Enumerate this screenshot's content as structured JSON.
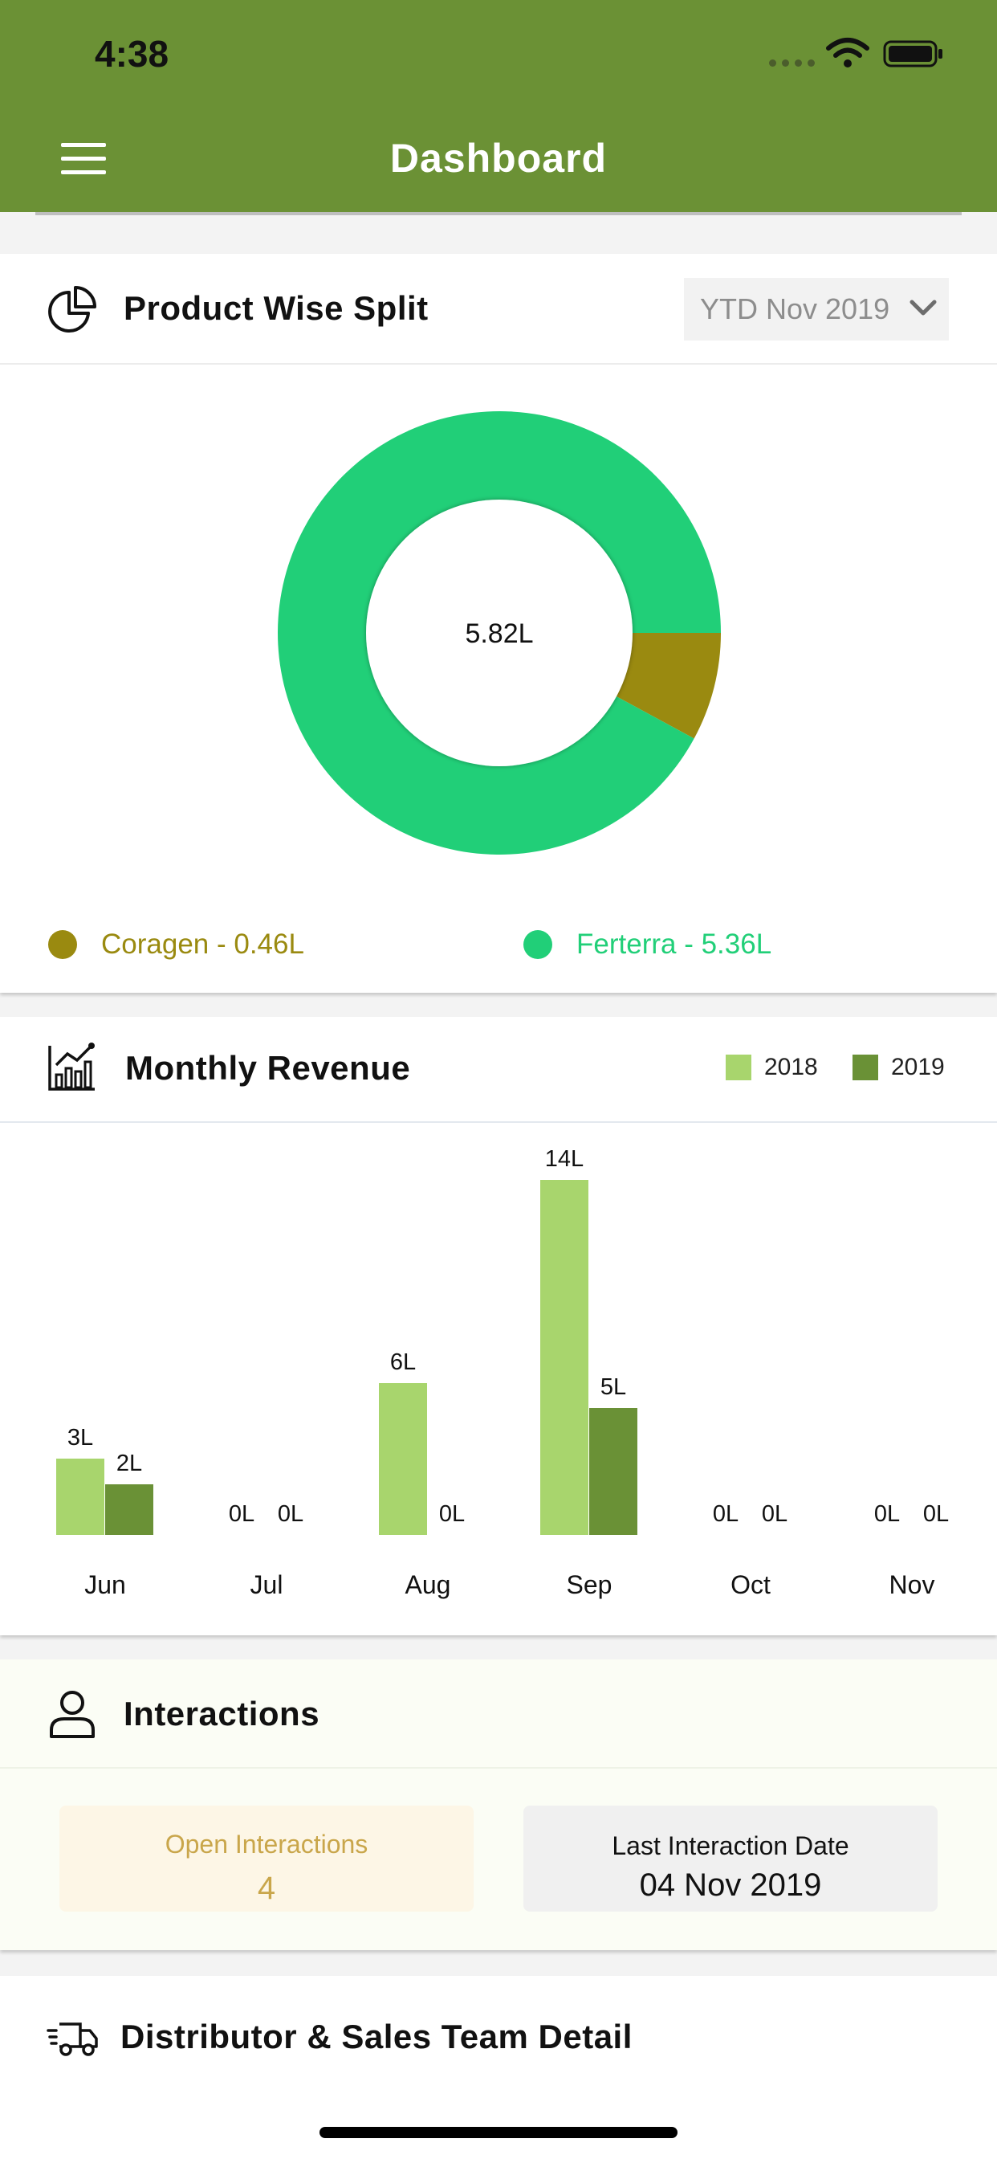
{
  "status_bar": {
    "time": "4:38"
  },
  "header": {
    "title": "Dashboard"
  },
  "product_split": {
    "title": "Product Wise Split",
    "period": "YTD Nov 2019",
    "total": "5.82L",
    "legend": [
      {
        "label": "Coragen - 0.46L",
        "color": "#9a8a10"
      },
      {
        "label": "Ferterra - 5.36L",
        "color": "#21cf78"
      }
    ]
  },
  "monthly_revenue": {
    "title": "Monthly Revenue",
    "legend": [
      {
        "label": "2018",
        "color": "#a8d56d"
      },
      {
        "label": "2019",
        "color": "#6a9136"
      }
    ]
  },
  "chart_data": [
    {
      "type": "pie",
      "categories": [
        "Coragen",
        "Ferterra"
      ],
      "values": [
        0.46,
        5.36
      ],
      "unit": "L",
      "colors": [
        "#9a8a10",
        "#21cf78"
      ],
      "center_label": "5.82L"
    },
    {
      "type": "bar",
      "categories": [
        "Jun",
        "Jul",
        "Aug",
        "Sep",
        "Oct",
        "Nov"
      ],
      "series": [
        {
          "name": "2018",
          "values": [
            3,
            0,
            6,
            14,
            0,
            0
          ],
          "labels": [
            "3L",
            "0L",
            "6L",
            "14L",
            "0L",
            "0L"
          ],
          "color": "#a8d56d"
        },
        {
          "name": "2019",
          "values": [
            2,
            0,
            0,
            5,
            0,
            0
          ],
          "labels": [
            "2L",
            "0L",
            "0L",
            "5L",
            "0L",
            "0L"
          ],
          "color": "#6a9136"
        }
      ],
      "ylim": [
        0,
        14
      ],
      "legend_position": "top-right"
    }
  ],
  "interactions": {
    "title": "Interactions",
    "open_label": "Open Interactions",
    "open_value": "4",
    "last_label": "Last Interaction Date",
    "last_value": "04 Nov 2019"
  },
  "distributor": {
    "title": "Distributor & Sales Team Detail"
  }
}
